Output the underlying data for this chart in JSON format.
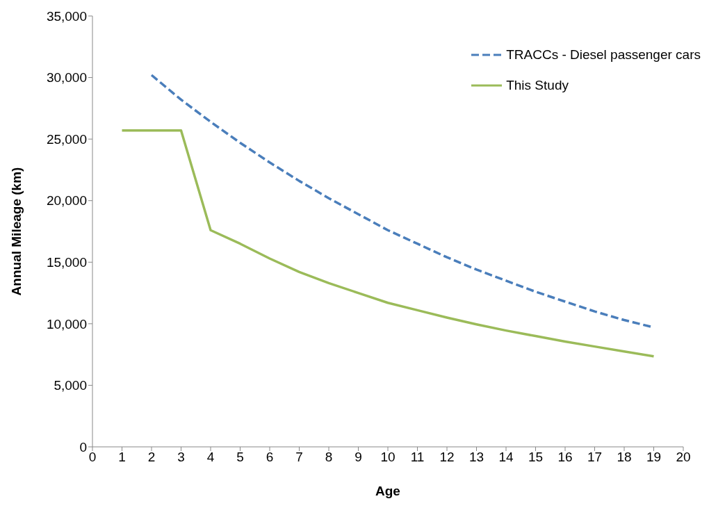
{
  "chart_data": {
    "type": "line",
    "xlabel": "Age",
    "ylabel": "Annual Mileage (km)",
    "x": [
      1,
      2,
      3,
      4,
      5,
      6,
      7,
      8,
      9,
      10,
      11,
      12,
      13,
      14,
      15,
      16,
      17,
      18,
      19
    ],
    "series": [
      {
        "name": "TRACCs - Diesel passenger cars",
        "color": "#4a7ebb",
        "line_style": "dashed",
        "values": [
          null,
          30200,
          28200,
          26400,
          24700,
          23100,
          21600,
          20200,
          18900,
          17600,
          16500,
          15400,
          14400,
          13500,
          12600,
          11800,
          11000,
          10300,
          9700
        ]
      },
      {
        "name": "This Study",
        "color": "#9bbb59",
        "line_style": "solid",
        "values": [
          25700,
          25700,
          25700,
          17600,
          16500,
          15300,
          14200,
          13300,
          12500,
          11700,
          11100,
          10500,
          9950,
          9450,
          9000,
          8550,
          8150,
          7750,
          7350
        ]
      }
    ],
    "xlim": [
      0,
      20
    ],
    "xticks": [
      0,
      1,
      2,
      3,
      4,
      5,
      6,
      7,
      8,
      9,
      10,
      11,
      12,
      13,
      14,
      15,
      16,
      17,
      18,
      19,
      20
    ],
    "ylim": [
      0,
      35000
    ],
    "yticks": [
      0,
      {
        "value": 5000,
        "label": "5,000"
      },
      {
        "value": 10000,
        "label": "10,000"
      },
      {
        "value": 15000,
        "label": "15,000"
      },
      {
        "value": 20000,
        "label": "20,000"
      },
      {
        "value": 25000,
        "label": "25,000"
      },
      {
        "value": 30000,
        "label": "30,000"
      },
      {
        "value": 35000,
        "label": "35,000"
      }
    ],
    "grid": false,
    "legend": "top right",
    "marker": "none"
  }
}
